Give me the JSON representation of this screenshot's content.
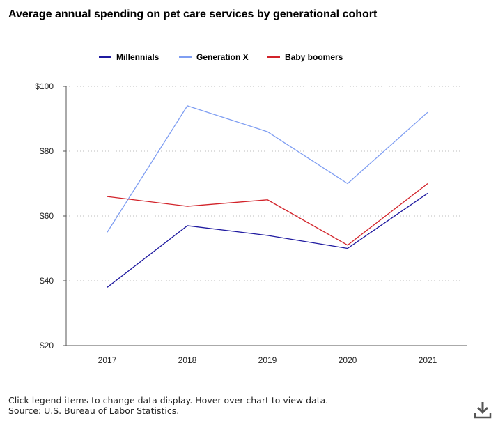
{
  "colors": {
    "millennials": "#1f1aa0",
    "genx": "#7f9ef2",
    "boomers": "#d2232a",
    "grid": "#bdbdbd",
    "axis": "#555555"
  },
  "chart_data": {
    "type": "line",
    "title": "Average annual spending on pet care services by generational cohort",
    "categories": [
      "2017",
      "2018",
      "2019",
      "2020",
      "2021"
    ],
    "series": [
      {
        "name": "Millennials",
        "values": [
          38,
          57,
          54,
          50,
          67
        ]
      },
      {
        "name": "Generation X",
        "values": [
          55,
          94,
          86,
          70,
          92
        ]
      },
      {
        "name": "Baby boomers",
        "values": [
          66,
          63,
          65,
          51,
          70
        ]
      }
    ],
    "ylim": [
      20,
      100
    ],
    "yticks": [
      20,
      40,
      60,
      80,
      100
    ],
    "ytick_labels": [
      "$20",
      "$40",
      "$60",
      "$80",
      "$100"
    ],
    "xlabel": "",
    "ylabel": "",
    "legend": "top-center",
    "grid": "horizontal-dotted"
  },
  "footer": {
    "note": "Click legend items to change data display. Hover over chart to view data.",
    "source": "Source: U.S. Bureau of Labor Statistics."
  },
  "download_icon": "download-icon"
}
